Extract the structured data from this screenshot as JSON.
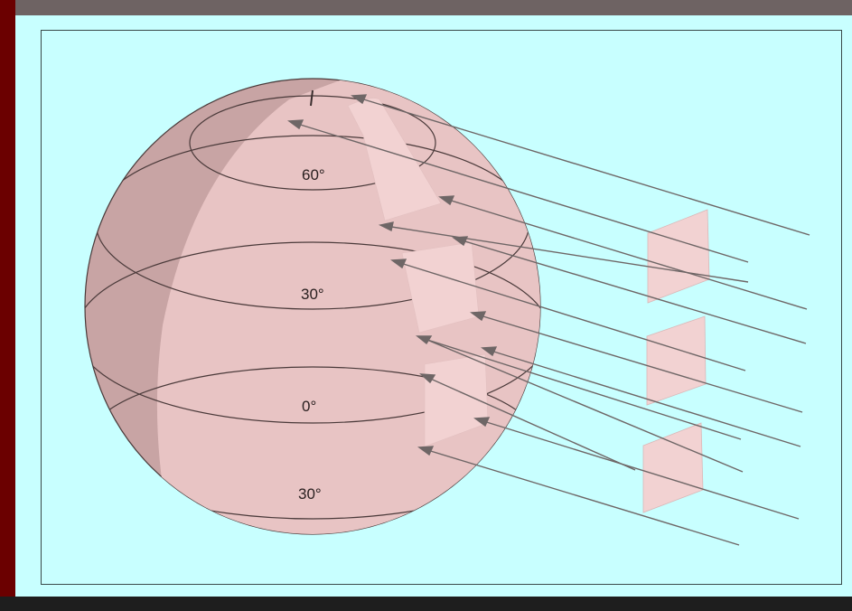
{
  "diagram": {
    "latitude_labels": {
      "lat_60": "60°",
      "lat_30n": "30°",
      "lat_0": "0°",
      "lat_30s": "30°"
    },
    "colors": {
      "background": "#c8ffff",
      "globe": "#c8a4a4",
      "lit_area": "#e8c4c4",
      "beam_patch": "#f2d2d2",
      "ray_line": "#6e6666",
      "frame_left": "#6b0000",
      "frame_top": "#6e6363"
    }
  }
}
